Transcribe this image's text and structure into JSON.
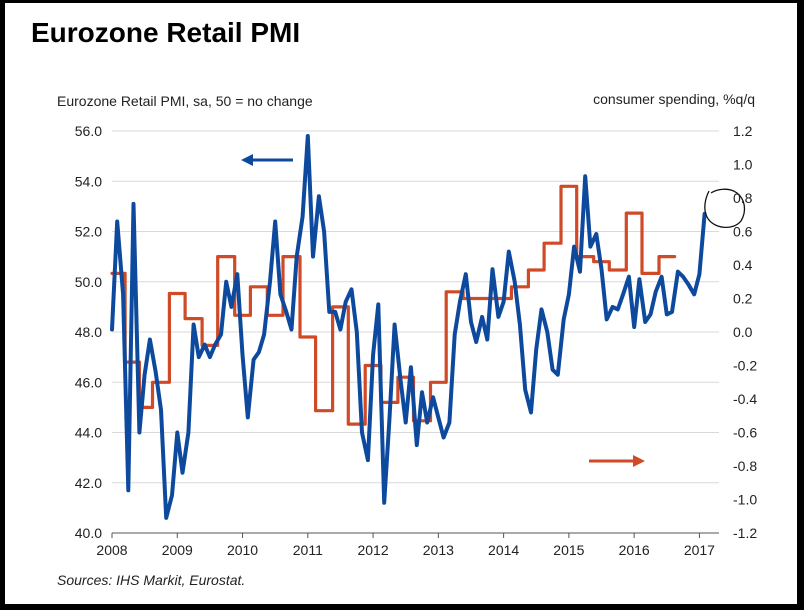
{
  "title": "Eurozone Retail PMI",
  "chart_data": {
    "type": "line",
    "title": "Eurozone Retail PMI",
    "left_axis_label": "Eurozone Retail PMI, sa, 50 = no change",
    "right_axis_label": "consumer spending, %q/q",
    "source": "Sources: IHS Markit, Eurostat.",
    "x_ticks": [
      "2008",
      "2009",
      "2010",
      "2011",
      "2012",
      "2013",
      "2014",
      "2015",
      "2016",
      "2017"
    ],
    "x_range": [
      2008,
      2017.3
    ],
    "left_ylim": [
      40,
      56
    ],
    "left_ticks": [
      "40.0",
      "42.0",
      "44.0",
      "46.0",
      "48.0",
      "50.0",
      "52.0",
      "54.0",
      "56.0"
    ],
    "right_ylim": [
      -1.2,
      1.2
    ],
    "right_ticks": [
      "-1.2",
      "-1.0",
      "-0.8",
      "-0.6",
      "-0.4",
      "-0.2",
      "0.0",
      "0.2",
      "0.4",
      "0.6",
      "0.8",
      "1.0",
      "1.2"
    ],
    "grid": true,
    "series": [
      {
        "axis": "left",
        "color": "#0d4a9e",
        "points": [
          [
            2008.0,
            48.1
          ],
          [
            2008.08,
            52.4
          ],
          [
            2008.17,
            49.5
          ],
          [
            2008.25,
            41.7
          ],
          [
            2008.33,
            53.1
          ],
          [
            2008.42,
            44.0
          ],
          [
            2008.5,
            46.3
          ],
          [
            2008.58,
            47.7
          ],
          [
            2008.67,
            46.4
          ],
          [
            2008.75,
            44.9
          ],
          [
            2008.83,
            40.6
          ],
          [
            2008.92,
            41.5
          ],
          [
            2009.0,
            44.0
          ],
          [
            2009.08,
            42.4
          ],
          [
            2009.17,
            44.0
          ],
          [
            2009.25,
            48.3
          ],
          [
            2009.33,
            47.0
          ],
          [
            2009.42,
            47.5
          ],
          [
            2009.5,
            47.0
          ],
          [
            2009.58,
            47.5
          ],
          [
            2009.67,
            47.9
          ],
          [
            2009.75,
            50.0
          ],
          [
            2009.83,
            49.0
          ],
          [
            2009.92,
            50.3
          ],
          [
            2010.0,
            47.1
          ],
          [
            2010.08,
            44.6
          ],
          [
            2010.17,
            46.9
          ],
          [
            2010.25,
            47.2
          ],
          [
            2010.33,
            47.9
          ],
          [
            2010.42,
            50.0
          ],
          [
            2010.5,
            52.4
          ],
          [
            2010.58,
            49.5
          ],
          [
            2010.67,
            48.8
          ],
          [
            2010.75,
            48.1
          ],
          [
            2010.83,
            51.0
          ],
          [
            2010.92,
            52.6
          ],
          [
            2011.0,
            55.8
          ],
          [
            2011.08,
            51.0
          ],
          [
            2011.17,
            53.4
          ],
          [
            2011.25,
            52.0
          ],
          [
            2011.33,
            48.8
          ],
          [
            2011.42,
            48.8
          ],
          [
            2011.5,
            48.1
          ],
          [
            2011.58,
            49.2
          ],
          [
            2011.67,
            49.7
          ],
          [
            2011.75,
            48.0
          ],
          [
            2011.83,
            44.0
          ],
          [
            2011.92,
            42.9
          ],
          [
            2012.0,
            47.1
          ],
          [
            2012.08,
            49.1
          ],
          [
            2012.17,
            41.2
          ],
          [
            2012.25,
            44.5
          ],
          [
            2012.33,
            48.3
          ],
          [
            2012.42,
            46.1
          ],
          [
            2012.5,
            44.4
          ],
          [
            2012.58,
            46.6
          ],
          [
            2012.67,
            43.5
          ],
          [
            2012.75,
            45.6
          ],
          [
            2012.83,
            44.4
          ],
          [
            2012.92,
            45.4
          ],
          [
            2013.0,
            44.6
          ],
          [
            2013.08,
            43.8
          ],
          [
            2013.17,
            44.4
          ],
          [
            2013.25,
            47.9
          ],
          [
            2013.33,
            49.2
          ],
          [
            2013.42,
            50.3
          ],
          [
            2013.5,
            48.4
          ],
          [
            2013.58,
            47.6
          ],
          [
            2013.67,
            48.6
          ],
          [
            2013.75,
            47.7
          ],
          [
            2013.83,
            50.5
          ],
          [
            2013.92,
            48.6
          ],
          [
            2014.0,
            49.2
          ],
          [
            2014.08,
            51.2
          ],
          [
            2014.17,
            50.0
          ],
          [
            2014.25,
            48.3
          ],
          [
            2014.33,
            45.7
          ],
          [
            2014.42,
            44.8
          ],
          [
            2014.5,
            47.3
          ],
          [
            2014.58,
            48.9
          ],
          [
            2014.67,
            48.0
          ],
          [
            2014.75,
            46.5
          ],
          [
            2014.83,
            46.3
          ],
          [
            2014.92,
            48.5
          ],
          [
            2015.0,
            49.5
          ],
          [
            2015.08,
            51.4
          ],
          [
            2015.17,
            50.4
          ],
          [
            2015.25,
            54.2
          ],
          [
            2015.33,
            51.4
          ],
          [
            2015.42,
            51.9
          ],
          [
            2015.5,
            50.5
          ],
          [
            2015.58,
            48.5
          ],
          [
            2015.67,
            49.0
          ],
          [
            2015.75,
            48.9
          ],
          [
            2015.83,
            49.5
          ],
          [
            2015.92,
            50.2
          ],
          [
            2016.0,
            48.2
          ],
          [
            2016.08,
            50.1
          ],
          [
            2016.17,
            48.4
          ],
          [
            2016.25,
            48.7
          ],
          [
            2016.33,
            49.6
          ],
          [
            2016.42,
            50.2
          ],
          [
            2016.5,
            48.7
          ],
          [
            2016.58,
            48.8
          ],
          [
            2016.67,
            50.4
          ],
          [
            2016.75,
            50.2
          ],
          [
            2016.83,
            49.9
          ],
          [
            2016.92,
            49.5
          ],
          [
            2017.0,
            50.3
          ],
          [
            2017.08,
            52.7
          ]
        ]
      },
      {
        "axis": "right",
        "color": "#d04a27",
        "points": [
          [
            2008.0,
            0.35
          ],
          [
            2008.2,
            0.35
          ],
          [
            2008.2,
            -0.18
          ],
          [
            2008.42,
            -0.18
          ],
          [
            2008.42,
            -0.45
          ],
          [
            2008.62,
            -0.45
          ],
          [
            2008.62,
            -0.3
          ],
          [
            2008.88,
            -0.3
          ],
          [
            2008.88,
            0.23
          ],
          [
            2009.12,
            0.23
          ],
          [
            2009.12,
            0.08
          ],
          [
            2009.38,
            0.08
          ],
          [
            2009.38,
            -0.08
          ],
          [
            2009.62,
            -0.08
          ],
          [
            2009.62,
            0.45
          ],
          [
            2009.88,
            0.45
          ],
          [
            2009.88,
            0.1
          ],
          [
            2010.12,
            0.1
          ],
          [
            2010.12,
            0.27
          ],
          [
            2010.38,
            0.27
          ],
          [
            2010.38,
            0.1
          ],
          [
            2010.62,
            0.1
          ],
          [
            2010.62,
            0.45
          ],
          [
            2010.88,
            0.45
          ],
          [
            2010.88,
            -0.03
          ],
          [
            2011.12,
            -0.03
          ],
          [
            2011.12,
            -0.47
          ],
          [
            2011.38,
            -0.47
          ],
          [
            2011.38,
            0.15
          ],
          [
            2011.62,
            0.15
          ],
          [
            2011.62,
            -0.55
          ],
          [
            2011.88,
            -0.55
          ],
          [
            2011.88,
            -0.2
          ],
          [
            2012.12,
            -0.2
          ],
          [
            2012.12,
            -0.42
          ],
          [
            2012.38,
            -0.42
          ],
          [
            2012.38,
            -0.27
          ],
          [
            2012.62,
            -0.27
          ],
          [
            2012.62,
            -0.53
          ],
          [
            2012.88,
            -0.53
          ],
          [
            2012.88,
            -0.3
          ],
          [
            2013.12,
            -0.3
          ],
          [
            2013.12,
            0.24
          ],
          [
            2013.38,
            0.24
          ],
          [
            2013.38,
            0.2
          ],
          [
            2013.62,
            0.2
          ],
          [
            2013.62,
            0.2
          ],
          [
            2013.88,
            0.2
          ],
          [
            2013.88,
            0.2
          ],
          [
            2014.12,
            0.2
          ],
          [
            2014.12,
            0.27
          ],
          [
            2014.38,
            0.27
          ],
          [
            2014.38,
            0.37
          ],
          [
            2014.62,
            0.37
          ],
          [
            2014.62,
            0.53
          ],
          [
            2014.88,
            0.53
          ],
          [
            2014.88,
            0.87
          ],
          [
            2015.12,
            0.87
          ],
          [
            2015.12,
            0.45
          ],
          [
            2015.38,
            0.45
          ],
          [
            2015.38,
            0.42
          ],
          [
            2015.62,
            0.42
          ],
          [
            2015.62,
            0.37
          ],
          [
            2015.88,
            0.37
          ],
          [
            2015.88,
            0.71
          ],
          [
            2016.12,
            0.71
          ],
          [
            2016.12,
            0.35
          ],
          [
            2016.38,
            0.35
          ],
          [
            2016.38,
            0.45
          ],
          [
            2016.62,
            0.45
          ]
        ]
      }
    ],
    "annotations": [
      {
        "type": "arrow",
        "direction": "left",
        "color": "#0d4a9e",
        "points_to": "left axis"
      },
      {
        "type": "arrow",
        "direction": "right",
        "color": "#d04a27",
        "points_to": "right axis"
      }
    ]
  }
}
